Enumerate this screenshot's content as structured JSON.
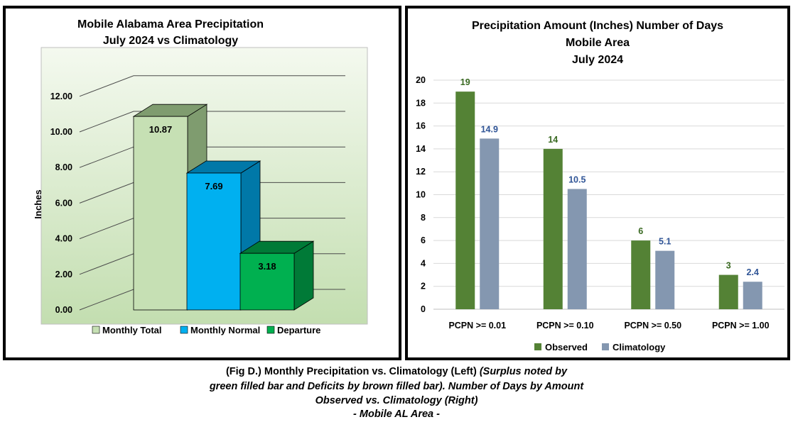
{
  "chart_data": [
    {
      "type": "bar",
      "title": "Mobile Alabama Area Precipitation",
      "subtitle": "July 2024 vs Climatology",
      "xlabel": "",
      "ylabel": "Inches",
      "ylim": [
        0,
        12
      ],
      "yticks": [
        "0.00",
        "2.00",
        "4.00",
        "6.00",
        "8.00",
        "10.00",
        "12.00"
      ],
      "grid": true,
      "legend": "bottom",
      "categories": [
        "Monthly Total",
        "Monthly Normal",
        "Departure"
      ],
      "values": [
        10.87,
        7.69,
        3.18
      ],
      "value_labels": [
        "10.87",
        "7.69",
        "3.18"
      ],
      "colors": [
        "#c6e0b4",
        "#00b0f0",
        "#00b050"
      ],
      "side_colors": [
        "#7f9c6f",
        "#0078a8",
        "#007a37"
      ],
      "top_colors": [
        "#7f9c6f",
        "#0078a8",
        "#007a37"
      ]
    },
    {
      "type": "bar",
      "title": "Precipitation Amount (Inches) Number of Days",
      "subtitle": "Mobile Area",
      "subtitle2": "July 2024",
      "xlabel": "",
      "ylabel": "",
      "ylim": [
        0,
        20
      ],
      "yticks": [
        "0",
        "2",
        "4",
        "6",
        "8",
        "10",
        "12",
        "14",
        "16",
        "18",
        "20"
      ],
      "grid": true,
      "legend": "bottom",
      "categories": [
        "PCPN >= 0.01",
        "PCPN >= 0.10",
        "PCPN >= 0.50",
        "PCPN >= 1.00"
      ],
      "series": [
        {
          "name": "Observed",
          "values": [
            19,
            14,
            6,
            3
          ],
          "labels": [
            "19",
            "14",
            "6",
            "3"
          ],
          "color": "#548235",
          "label_color": "#3a6a22"
        },
        {
          "name": "Climatology",
          "values": [
            14.9,
            10.5,
            5.1,
            2.4
          ],
          "labels": [
            "14.9",
            "10.5",
            "5.1",
            "2.4"
          ],
          "color": "#8497b0",
          "label_color": "#2f5496"
        }
      ]
    }
  ],
  "caption": {
    "line1_bold": "(Fig D.) Monthly Precipitation vs. Climatology (Left) ",
    "line1_italic": "(Surplus noted by",
    "line2": "green filled bar and Deficits by brown filled bar). Number of Days by Amount",
    "line3": "Observed vs. Climatology (Right)",
    "line4": "- Mobile AL Area -"
  }
}
